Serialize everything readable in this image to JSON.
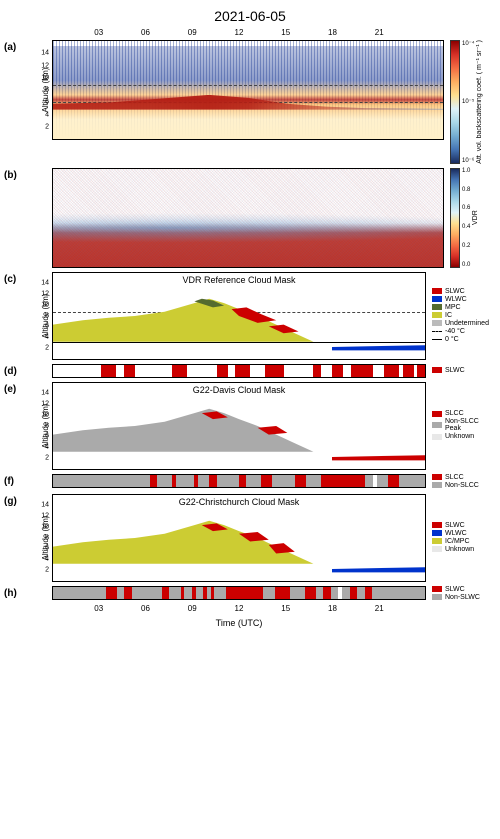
{
  "title": "2021-06-05",
  "time_ticks": [
    "03",
    "06",
    "09",
    "12",
    "15",
    "18",
    "21"
  ],
  "time_pct": [
    12.5,
    25,
    37.5,
    50,
    62.5,
    75,
    87.5
  ],
  "xlabel": "Time (UTC)",
  "ylabel_altitude": "Altitude (km)",
  "yticks_alt": [
    "2",
    "4",
    "6",
    "8",
    "10",
    "12",
    "14"
  ],
  "yticks_pct": [
    87.5,
    75,
    62.5,
    50,
    37.5,
    25,
    12.5
  ],
  "panels": {
    "a": {
      "label": "(a)",
      "cbar_label": "Att. vol. backscattering coef. ( m⁻¹ sr⁻¹ )",
      "cbar_ticks": [
        "10⁻⁴",
        "10⁻⁵",
        "10⁻⁶"
      ],
      "iso_20_pct": 62,
      "iso_40_pct": 45
    },
    "b": {
      "label": "(b)",
      "cbar_label": "VDR",
      "cbar_ticks": [
        "1.0",
        "0.8",
        "0.6",
        "0.4",
        "0.2",
        "0.0"
      ]
    },
    "c": {
      "label": "(c)",
      "subtitle": "VDR Reference Cloud Mask",
      "legend": [
        {
          "label": "SLWC",
          "color": "#cc0000"
        },
        {
          "label": "WLWC",
          "color": "#0033cc"
        },
        {
          "label": "MPC",
          "color": "#556b2f"
        },
        {
          "label": "IC",
          "color": "#cccc33"
        },
        {
          "label": "Undetermined",
          "color": "#bbbbbb"
        },
        {
          "label": "-40 °C",
          "line": "dashed"
        },
        {
          "label": "0 °C",
          "line": "solid"
        }
      ],
      "iso_m40_pct": 46,
      "iso_0_pct": 80
    },
    "d": {
      "label": "(d)",
      "legend": [
        {
          "label": "SLWC",
          "color": "#cc0000"
        }
      ],
      "segments": [
        {
          "w": 13,
          "c": "#ffffff"
        },
        {
          "w": 4,
          "c": "#cc0000"
        },
        {
          "w": 2,
          "c": "#ffffff"
        },
        {
          "w": 3,
          "c": "#cc0000"
        },
        {
          "w": 10,
          "c": "#ffffff"
        },
        {
          "w": 4,
          "c": "#cc0000"
        },
        {
          "w": 8,
          "c": "#ffffff"
        },
        {
          "w": 3,
          "c": "#cc0000"
        },
        {
          "w": 2,
          "c": "#ffffff"
        },
        {
          "w": 4,
          "c": "#cc0000"
        },
        {
          "w": 4,
          "c": "#ffffff"
        },
        {
          "w": 5,
          "c": "#cc0000"
        },
        {
          "w": 8,
          "c": "#ffffff"
        },
        {
          "w": 2,
          "c": "#cc0000"
        },
        {
          "w": 3,
          "c": "#ffffff"
        },
        {
          "w": 3,
          "c": "#cc0000"
        },
        {
          "w": 2,
          "c": "#ffffff"
        },
        {
          "w": 6,
          "c": "#cc0000"
        },
        {
          "w": 3,
          "c": "#ffffff"
        },
        {
          "w": 4,
          "c": "#cc0000"
        },
        {
          "w": 1,
          "c": "#ffffff"
        },
        {
          "w": 3,
          "c": "#cc0000"
        },
        {
          "w": 1,
          "c": "#ffffff"
        },
        {
          "w": 2,
          "c": "#cc0000"
        }
      ]
    },
    "e": {
      "label": "(e)",
      "subtitle": "G22-Davis Cloud Mask",
      "legend": [
        {
          "label": "SLCC",
          "color": "#cc0000"
        },
        {
          "label": "Non-SLCC Peak",
          "color": "#aaaaaa"
        },
        {
          "label": "Unknown",
          "color": "#e8e8e8"
        }
      ]
    },
    "f": {
      "label": "(f)",
      "legend": [
        {
          "label": "SLCC",
          "color": "#cc0000"
        },
        {
          "label": "Non-SLCC",
          "color": "#aaaaaa"
        }
      ],
      "segments": [
        {
          "w": 26,
          "c": "#aaaaaa"
        },
        {
          "w": 2,
          "c": "#cc0000"
        },
        {
          "w": 4,
          "c": "#aaaaaa"
        },
        {
          "w": 1,
          "c": "#cc0000"
        },
        {
          "w": 5,
          "c": "#aaaaaa"
        },
        {
          "w": 1,
          "c": "#cc0000"
        },
        {
          "w": 3,
          "c": "#aaaaaa"
        },
        {
          "w": 2,
          "c": "#cc0000"
        },
        {
          "w": 6,
          "c": "#aaaaaa"
        },
        {
          "w": 2,
          "c": "#cc0000"
        },
        {
          "w": 4,
          "c": "#aaaaaa"
        },
        {
          "w": 3,
          "c": "#cc0000"
        },
        {
          "w": 6,
          "c": "#aaaaaa"
        },
        {
          "w": 3,
          "c": "#cc0000"
        },
        {
          "w": 4,
          "c": "#aaaaaa"
        },
        {
          "w": 12,
          "c": "#cc0000"
        },
        {
          "w": 2,
          "c": "#aaaaaa"
        },
        {
          "w": 1,
          "c": "#ffffff"
        },
        {
          "w": 3,
          "c": "#aaaaaa"
        },
        {
          "w": 3,
          "c": "#cc0000"
        },
        {
          "w": 7,
          "c": "#aaaaaa"
        }
      ]
    },
    "g": {
      "label": "(g)",
      "subtitle": "G22-Christchurch Cloud Mask",
      "legend": [
        {
          "label": "SLWC",
          "color": "#cc0000"
        },
        {
          "label": "WLWC",
          "color": "#0033cc"
        },
        {
          "label": "IC/MPC",
          "color": "#cccc33"
        },
        {
          "label": "Unknown",
          "color": "#e8e8e8"
        }
      ]
    },
    "h": {
      "label": "(h)",
      "legend": [
        {
          "label": "SLWC",
          "color": "#cc0000"
        },
        {
          "label": "Non-SLWC",
          "color": "#aaaaaa"
        }
      ],
      "segments": [
        {
          "w": 14,
          "c": "#aaaaaa"
        },
        {
          "w": 3,
          "c": "#cc0000"
        },
        {
          "w": 2,
          "c": "#aaaaaa"
        },
        {
          "w": 2,
          "c": "#cc0000"
        },
        {
          "w": 8,
          "c": "#aaaaaa"
        },
        {
          "w": 2,
          "c": "#cc0000"
        },
        {
          "w": 3,
          "c": "#aaaaaa"
        },
        {
          "w": 1,
          "c": "#cc0000"
        },
        {
          "w": 2,
          "c": "#aaaaaa"
        },
        {
          "w": 1,
          "c": "#cc0000"
        },
        {
          "w": 2,
          "c": "#aaaaaa"
        },
        {
          "w": 1,
          "c": "#cc0000"
        },
        {
          "w": 1,
          "c": "#aaaaaa"
        },
        {
          "w": 1,
          "c": "#cc0000"
        },
        {
          "w": 3,
          "c": "#aaaaaa"
        },
        {
          "w": 10,
          "c": "#cc0000"
        },
        {
          "w": 3,
          "c": "#aaaaaa"
        },
        {
          "w": 4,
          "c": "#cc0000"
        },
        {
          "w": 4,
          "c": "#aaaaaa"
        },
        {
          "w": 3,
          "c": "#cc0000"
        },
        {
          "w": 2,
          "c": "#aaaaaa"
        },
        {
          "w": 2,
          "c": "#cc0000"
        },
        {
          "w": 2,
          "c": "#aaaaaa"
        },
        {
          "w": 1,
          "c": "#ffffff"
        },
        {
          "w": 2,
          "c": "#aaaaaa"
        },
        {
          "w": 2,
          "c": "#cc0000"
        },
        {
          "w": 2,
          "c": "#aaaaaa"
        },
        {
          "w": 2,
          "c": "#cc0000"
        },
        {
          "w": 14,
          "c": "#aaaaaa"
        }
      ]
    }
  },
  "colors": {
    "slwc": "#cc0000",
    "wlwc": "#0033cc",
    "mpc": "#556b2f",
    "ic": "#cccc33",
    "und": "#bbbbbb",
    "gray": "#aaaaaa",
    "lgray": "#e8e8e8"
  },
  "heights": {
    "tall": 100,
    "short": 14,
    "mask": 88
  }
}
